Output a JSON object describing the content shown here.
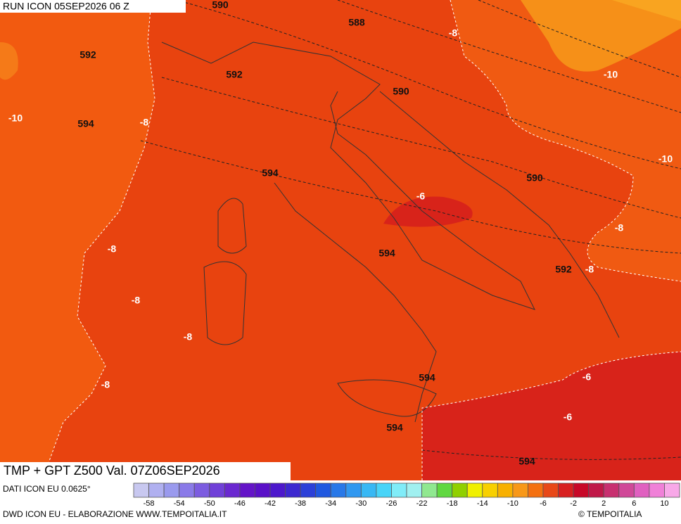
{
  "header": {
    "run": "RUN ICON 05SEP2026 06 Z"
  },
  "map": {
    "labels": [
      "590",
      "588",
      "-8",
      "592",
      "592",
      "-10",
      "590",
      "-10",
      "594",
      "-8",
      "-10",
      "594",
      "590",
      "-6",
      "-8",
      "-8",
      "594",
      "592",
      "-8",
      "-8",
      "-8",
      "-8",
      "594",
      "-6",
      "-6",
      "594",
      "594"
    ]
  },
  "footer": {
    "title": "TMP + GPT Z500 Val. 07Z06SEP2026",
    "data_source": "DATI ICON EU 0.0625°",
    "credit": "DWD ICON EU - ELABORAZIONE WWW.TEMPOITALIA.IT",
    "copyright": "© TEMPOITALIA"
  },
  "legend": {
    "colors": [
      "#c8c8f0",
      "#b0b0f0",
      "#9a9aee",
      "#8a7ae8",
      "#7c5ce0",
      "#7040d8",
      "#6a28d0",
      "#6414c8",
      "#5a10c8",
      "#4c18cc",
      "#3c28d0",
      "#2c40d8",
      "#2058e0",
      "#2878e8",
      "#3098f0",
      "#38b8f4",
      "#48d4f8",
      "#80ecf8",
      "#a0f0f0",
      "#90e890",
      "#60d840",
      "#90d000",
      "#f0f000",
      "#f8d000",
      "#f8b000",
      "#f89818",
      "#f47010",
      "#e84818",
      "#d82020",
      "#c80828",
      "#c01848",
      "#c83070",
      "#d04898",
      "#e060c0",
      "#f080d8",
      "#f8a8e8"
    ],
    "ticks": [
      -58,
      -54,
      -50,
      -46,
      -42,
      -38,
      -34,
      -30,
      -26,
      -22,
      -18,
      -14,
      -10,
      -6,
      -2,
      2,
      6,
      10
    ]
  }
}
